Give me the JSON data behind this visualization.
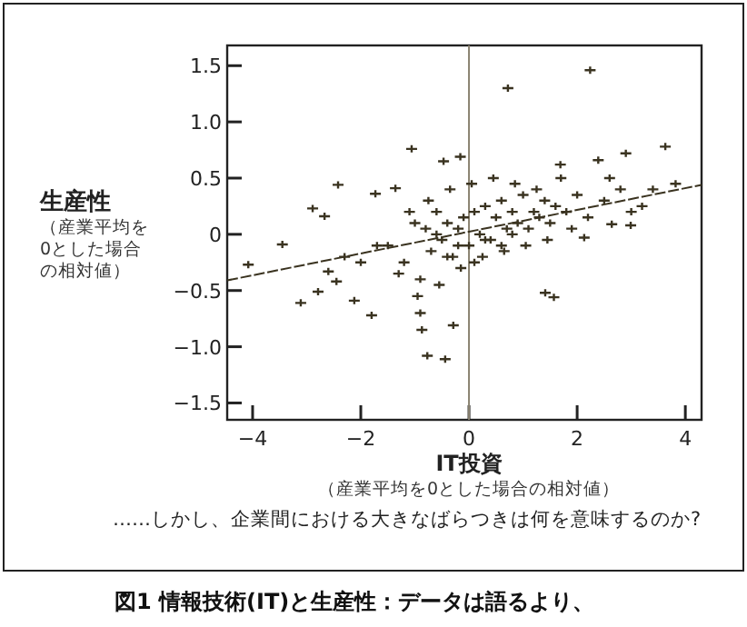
{
  "chart_data": {
    "type": "scatter",
    "title": "図1 情報技術(IT)と生産性：データは語るより、",
    "xlabel": "IT投資",
    "ylabel": "生産性",
    "annotations": [
      "（産業平均を0とした場合の相対値）",
      "（産業平均を0とした場合の相対値）",
      "……しかし、企業間における大きなばらつきは何を意味するのか?"
    ],
    "xlim": [
      -4.47,
      4.3
    ],
    "ylim": [
      -1.65,
      1.68
    ],
    "xticks": [
      {
        "value": -4,
        "label": "−4"
      },
      {
        "value": -2,
        "label": "−2"
      },
      0,
      2,
      4
    ],
    "yticks": [
      {
        "value": 1.5,
        "label": "1.5"
      },
      {
        "value": 1,
        "label": "1.0"
      },
      {
        "value": 0.5,
        "label": "0.5"
      },
      0,
      {
        "value": -0.5,
        "label": "−0.5"
      },
      {
        "value": -1,
        "label": "−1.0"
      },
      {
        "value": -1.5,
        "label": "−1.5"
      }
    ],
    "ref_lines": [
      {
        "axis": "x",
        "value": 0,
        "color": "#8a8270"
      }
    ],
    "series": [
      {
        "type": "scatter",
        "color": "#3a3320",
        "marker": "cross",
        "x": [
          2.24,
          0.72,
          -1.06,
          3.63,
          -2.42,
          -2.89,
          -2.67,
          -3.45,
          -4.08,
          -3.11,
          -2.79,
          -2.12,
          -1.8,
          -0.9,
          -0.87,
          -0.29,
          -0.77,
          -0.44,
          1.41,
          1.57,
          2.99,
          3.82,
          2.9,
          2.39,
          1.69,
          -0.16,
          -0.47,
          -1.73,
          -1.36,
          -2.6,
          -2.45,
          2.13,
          2.64,
          -1.2,
          -1.0,
          -0.9,
          -0.8,
          -0.7,
          -0.6,
          -0.5,
          -0.4,
          -0.3,
          -0.2,
          -0.1,
          0.0,
          0.1,
          0.2,
          0.3,
          0.4,
          0.5,
          0.6,
          0.7,
          0.8,
          0.9,
          1.0,
          1.1,
          1.2,
          1.3,
          1.4,
          1.5,
          1.6,
          1.8,
          2.0,
          -1.5,
          -1.3,
          -1.1,
          -0.95,
          -0.75,
          -0.55,
          -0.35,
          -0.15,
          0.05,
          0.25,
          0.45,
          0.65,
          0.85,
          1.05,
          1.25,
          1.45,
          1.7,
          1.9,
          2.2,
          2.5,
          2.8,
          3.2,
          -0.6,
          -0.2,
          0.3,
          0.8,
          -0.4,
          0.1,
          0.6,
          -1.7,
          -2.0,
          -2.3,
          3.4,
          3.0,
          2.6
        ],
        "values": [
          1.46,
          1.3,
          0.76,
          0.78,
          0.44,
          0.23,
          0.16,
          -0.09,
          -0.27,
          -0.61,
          -0.51,
          -0.59,
          -0.72,
          -0.7,
          -0.85,
          -0.81,
          -1.08,
          -1.11,
          -0.52,
          -0.56,
          0.08,
          0.45,
          0.72,
          0.66,
          0.62,
          0.69,
          0.65,
          0.36,
          0.41,
          -0.33,
          -0.42,
          -0.03,
          0.09,
          -0.25,
          0.1,
          -0.4,
          0.05,
          -0.15,
          0.2,
          -0.05,
          0.1,
          -0.2,
          0.05,
          0.15,
          -0.1,
          0.2,
          0.0,
          0.25,
          -0.05,
          0.15,
          0.3,
          0.05,
          0.2,
          0.1,
          0.35,
          0.05,
          0.2,
          0.15,
          0.3,
          0.1,
          0.25,
          0.2,
          0.35,
          -0.1,
          -0.35,
          0.2,
          -0.55,
          0.3,
          -0.45,
          0.4,
          -0.3,
          0.45,
          -0.2,
          0.5,
          -0.15,
          0.45,
          -0.1,
          0.4,
          -0.05,
          0.5,
          0.05,
          0.15,
          0.3,
          0.4,
          0.25,
          0.0,
          -0.1,
          -0.05,
          0.0,
          -0.2,
          -0.25,
          -0.1,
          -0.1,
          -0.25,
          -0.2,
          0.4,
          0.2,
          0.5
        ]
      },
      {
        "type": "line",
        "color": "#3a3320",
        "line_style": "dashed",
        "x": [
          -4.47,
          4.3
        ],
        "values": [
          -0.41,
          0.44
        ]
      }
    ]
  }
}
